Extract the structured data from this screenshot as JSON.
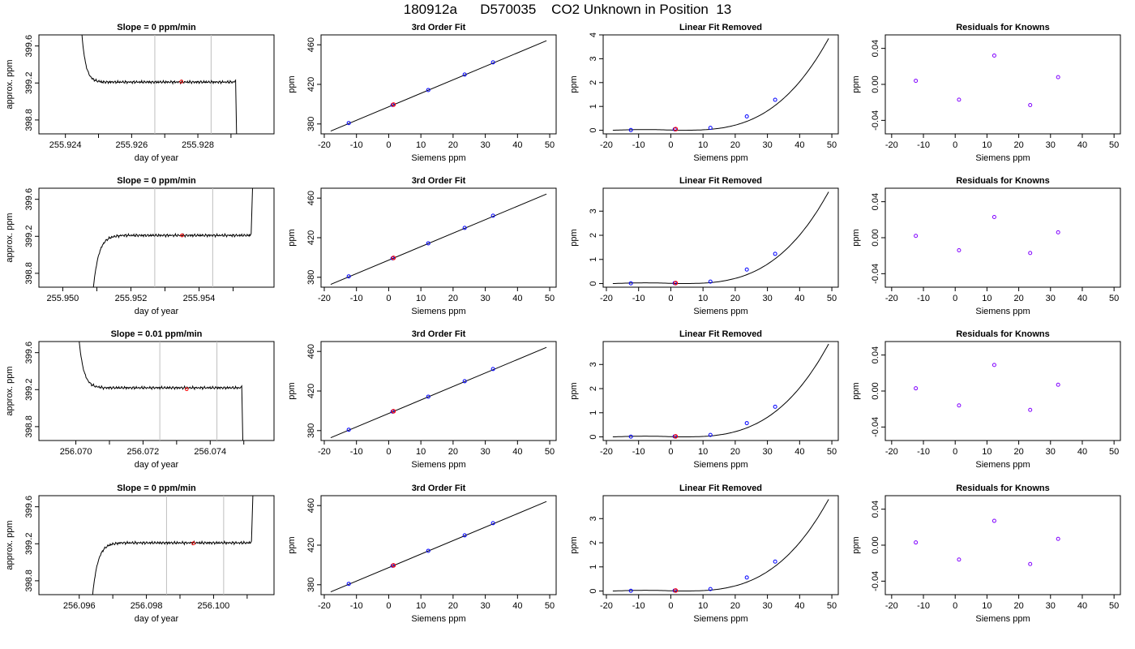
{
  "title": "180912a      D570035    CO2 Unknown in Position  13",
  "colors": {
    "curve": "#000000",
    "known_point": "#0000ff",
    "unknown_point": "#ff0000",
    "residual_point": "#8000ff",
    "window_marker": "#bfbfbf"
  },
  "chart_data": [
    {
      "type": "line",
      "panel": "time-series",
      "row": 1,
      "title": "Slope =  0  ppm/min",
      "xlabel": "day of year",
      "ylabel": "approx. ppm",
      "xlim": [
        255.9232,
        255.9303
      ],
      "ylim": [
        398.65,
        399.72
      ],
      "xticks": [
        255.924,
        255.926,
        255.928
      ],
      "xticklabels": [
        "255.924",
        "255.926",
        "255.928"
      ],
      "xminorticks": [
        255.925,
        255.927,
        255.929
      ],
      "yticks": [
        398.8,
        399.2,
        399.6
      ],
      "yticklabels": [
        "398.8",
        "399.2",
        "399.6"
      ],
      "trace": {
        "start": 255.9245,
        "rise_end": 255.9251,
        "end": 255.9291,
        "level": 399.21,
        "entry": 399.72,
        "exit": 398.65,
        "direction": "down-up-down"
      },
      "window": [
        255.9267,
        255.9284
      ],
      "marker": {
        "x": 255.9275,
        "y": 399.215
      }
    },
    {
      "type": "line",
      "panel": "fit",
      "row": 1,
      "title": "3rd Order Fit",
      "xlabel": "Siemens ppm",
      "ylabel": "ppm",
      "xlim": [
        -21,
        52
      ],
      "ylim": [
        370,
        470
      ],
      "xticks": [
        -20,
        -10,
        0,
        10,
        20,
        30,
        40,
        50
      ],
      "yticks": [
        380,
        420,
        460
      ],
      "line": {
        "x": [
          -18,
          49
        ],
        "y": [
          372.8,
          464.1
        ]
      },
      "knowns": {
        "x": [
          -12.4,
          1.2,
          12.3,
          23.6,
          32.4
        ],
        "y": [
          380.9,
          399.2,
          414.3,
          429.9,
          442.2
        ]
      },
      "unknown": {
        "x": 1.5,
        "y": 399.6
      }
    },
    {
      "type": "line",
      "panel": "linear-removed",
      "row": 1,
      "title": "Linear Fit Removed",
      "xlabel": "Siemens ppm",
      "ylabel": "ppm",
      "xlim": [
        -21,
        52
      ],
      "ylim": [
        -0.15,
        4.0
      ],
      "xticks": [
        -20,
        -10,
        0,
        10,
        20,
        30,
        40,
        50
      ],
      "yticks": [
        0,
        1,
        2,
        3,
        4
      ],
      "curve": {
        "x0": -18,
        "x1": 49,
        "amax": 3.85
      },
      "knowns": {
        "x": [
          -12.4,
          1.2,
          12.3,
          23.6,
          32.4
        ],
        "y": [
          0.01,
          0.04,
          0.1,
          0.58,
          1.28
        ]
      },
      "unknown": {
        "x": 1.5,
        "y": 0.05
      }
    },
    {
      "type": "scatter",
      "panel": "residuals",
      "row": 1,
      "title": "Residuals for Knowns",
      "xlabel": "Siemens ppm",
      "ylabel": "ppm",
      "xlim": [
        -22,
        52
      ],
      "ylim": [
        -0.055,
        0.055
      ],
      "xticks": [
        -20,
        -10,
        0,
        10,
        20,
        30,
        40,
        50
      ],
      "yticks": [
        -0.04,
        0.0,
        0.04
      ],
      "yticklabels": [
        "-0.04",
        "0.00",
        "0.04"
      ],
      "points": {
        "x": [
          -12.4,
          1.2,
          12.3,
          23.6,
          32.4
        ],
        "y": [
          0.004,
          -0.017,
          0.032,
          -0.023,
          0.008
        ]
      }
    },
    {
      "type": "line",
      "panel": "time-series",
      "row": 2,
      "title": "Slope =  0  ppm/min",
      "xlabel": "day of year",
      "ylabel": "approx. ppm",
      "xlim": [
        255.9493,
        255.9562
      ],
      "ylim": [
        398.65,
        399.72
      ],
      "xticks": [
        255.95,
        255.952,
        255.954
      ],
      "xticklabels": [
        "255.950",
        "255.952",
        "255.954"
      ],
      "xminorticks": [
        255.951,
        255.953,
        255.955
      ],
      "yticks": [
        398.8,
        399.2,
        399.6
      ],
      "yticklabels": [
        "398.8",
        "399.2",
        "399.6"
      ],
      "trace": {
        "start": 255.9509,
        "rise_end": 255.9517,
        "end": 255.9555,
        "level": 399.21,
        "entry": 398.65,
        "exit": 399.72,
        "direction": "up-up"
      },
      "window": [
        255.9527,
        255.9544
      ],
      "marker": {
        "x": 255.9535,
        "y": 399.21
      }
    },
    {
      "type": "line",
      "panel": "fit",
      "row": 2,
      "title": "3rd Order Fit",
      "xlabel": "Siemens ppm",
      "ylabel": "ppm",
      "xlim": [
        -21,
        52
      ],
      "ylim": [
        370,
        470
      ],
      "xticks": [
        -20,
        -10,
        0,
        10,
        20,
        30,
        40,
        50
      ],
      "yticks": [
        380,
        420,
        460
      ],
      "line": {
        "x": [
          -18,
          49
        ],
        "y": [
          372.8,
          464.1
        ]
      },
      "knowns": {
        "x": [
          -12.4,
          1.2,
          12.3,
          23.6,
          32.4
        ],
        "y": [
          380.9,
          399.2,
          414.3,
          429.9,
          442.2
        ]
      },
      "unknown": {
        "x": 1.5,
        "y": 399.6
      }
    },
    {
      "type": "line",
      "panel": "linear-removed",
      "row": 2,
      "title": "Linear Fit Removed",
      "xlabel": "Siemens ppm",
      "ylabel": "ppm",
      "xlim": [
        -21,
        52
      ],
      "ylim": [
        -0.15,
        3.95
      ],
      "xticks": [
        -20,
        -10,
        0,
        10,
        20,
        30,
        40,
        50
      ],
      "yticks": [
        0,
        1,
        2,
        3
      ],
      "curve": {
        "x0": -18,
        "x1": 49,
        "amax": 3.8
      },
      "knowns": {
        "x": [
          -12.4,
          1.2,
          12.3,
          23.6,
          32.4
        ],
        "y": [
          0.01,
          0.02,
          0.08,
          0.58,
          1.23
        ]
      },
      "unknown": {
        "x": 1.5,
        "y": 0.02
      }
    },
    {
      "type": "scatter",
      "panel": "residuals",
      "row": 2,
      "title": "Residuals for Knowns",
      "xlabel": "Siemens ppm",
      "ylabel": "ppm",
      "xlim": [
        -22,
        52
      ],
      "ylim": [
        -0.055,
        0.055
      ],
      "xticks": [
        -20,
        -10,
        0,
        10,
        20,
        30,
        40,
        50
      ],
      "yticks": [
        -0.04,
        0.0,
        0.04
      ],
      "yticklabels": [
        "-0.04",
        "0.00",
        "0.04"
      ],
      "points": {
        "x": [
          -12.4,
          1.2,
          12.3,
          23.6,
          32.4
        ],
        "y": [
          0.002,
          -0.014,
          0.023,
          -0.017,
          0.006
        ]
      }
    },
    {
      "type": "line",
      "panel": "time-series",
      "row": 3,
      "title": "Slope =  0.01  ppm/min",
      "xlabel": "day of year",
      "ylabel": "approx. ppm",
      "xlim": [
        256.0689,
        256.0759
      ],
      "ylim": [
        398.65,
        399.72
      ],
      "xticks": [
        256.07,
        256.072,
        256.074
      ],
      "xticklabels": [
        "256.070",
        "256.072",
        "256.074"
      ],
      "xminorticks": [
        256.071,
        256.073,
        256.075
      ],
      "yticks": [
        398.8,
        399.2,
        399.6
      ],
      "yticklabels": [
        "398.8",
        "399.2",
        "399.6"
      ],
      "trace": {
        "start": 256.0701,
        "rise_end": 256.0708,
        "end": 256.0749,
        "level": 399.22,
        "entry": 399.72,
        "exit": 398.65,
        "direction": "down-up-down"
      },
      "window": [
        256.0725,
        256.0742
      ],
      "marker": {
        "x": 256.0733,
        "y": 399.205
      }
    },
    {
      "type": "line",
      "panel": "fit",
      "row": 3,
      "title": "3rd Order Fit",
      "xlabel": "Siemens ppm",
      "ylabel": "ppm",
      "xlim": [
        -21,
        52
      ],
      "ylim": [
        370,
        470
      ],
      "xticks": [
        -20,
        -10,
        0,
        10,
        20,
        30,
        40,
        50
      ],
      "yticks": [
        380,
        420,
        460
      ],
      "line": {
        "x": [
          -18,
          49
        ],
        "y": [
          372.8,
          464.1
        ]
      },
      "knowns": {
        "x": [
          -12.4,
          1.2,
          12.3,
          23.6,
          32.4
        ],
        "y": [
          380.9,
          399.2,
          414.3,
          429.9,
          442.2
        ]
      },
      "unknown": {
        "x": 1.5,
        "y": 399.6
      }
    },
    {
      "type": "line",
      "panel": "linear-removed",
      "row": 3,
      "title": "Linear Fit Removed",
      "xlabel": "Siemens ppm",
      "ylabel": "ppm",
      "xlim": [
        -21,
        52
      ],
      "ylim": [
        -0.15,
        3.95
      ],
      "xticks": [
        -20,
        -10,
        0,
        10,
        20,
        30,
        40,
        50
      ],
      "yticks": [
        0,
        1,
        2,
        3
      ],
      "curve": {
        "x0": -18,
        "x1": 49,
        "amax": 3.85
      },
      "knowns": {
        "x": [
          -12.4,
          1.2,
          12.3,
          23.6,
          32.4
        ],
        "y": [
          0.01,
          0.02,
          0.08,
          0.57,
          1.25
        ]
      },
      "unknown": {
        "x": 1.5,
        "y": 0.02
      }
    },
    {
      "type": "scatter",
      "panel": "residuals",
      "row": 3,
      "title": "Residuals for Knowns",
      "xlabel": "Siemens ppm",
      "ylabel": "ppm",
      "xlim": [
        -22,
        52
      ],
      "ylim": [
        -0.055,
        0.055
      ],
      "xticks": [
        -20,
        -10,
        0,
        10,
        20,
        30,
        40,
        50
      ],
      "yticks": [
        -0.04,
        0.0,
        0.04
      ],
      "yticklabels": [
        "-0.04",
        "0.00",
        "0.04"
      ],
      "points": {
        "x": [
          -12.4,
          1.2,
          12.3,
          23.6,
          32.4
        ],
        "y": [
          0.003,
          -0.016,
          0.029,
          -0.021,
          0.007
        ]
      }
    },
    {
      "type": "line",
      "panel": "time-series",
      "row": 4,
      "title": "Slope =  0  ppm/min",
      "xlabel": "day of year",
      "ylabel": "approx. ppm",
      "xlim": [
        256.0948,
        256.1018
      ],
      "ylim": [
        398.65,
        399.72
      ],
      "xticks": [
        256.096,
        256.098,
        256.1
      ],
      "xticklabels": [
        "256.096",
        "256.098",
        "256.100"
      ],
      "xminorticks": [
        256.097,
        256.099,
        256.101
      ],
      "yticks": [
        398.8,
        399.2,
        399.6
      ],
      "yticklabels": [
        "398.8",
        "399.2",
        "399.6"
      ],
      "trace": {
        "start": 256.0964,
        "rise_end": 256.0972,
        "end": 256.1011,
        "level": 399.21,
        "entry": 398.65,
        "exit": 399.72,
        "direction": "up-up"
      },
      "window": [
        256.0986,
        256.1003
      ],
      "marker": {
        "x": 256.0994,
        "y": 399.205
      }
    },
    {
      "type": "line",
      "panel": "fit",
      "row": 4,
      "title": "3rd Order Fit",
      "xlabel": "Siemens ppm",
      "ylabel": "ppm",
      "xlim": [
        -21,
        52
      ],
      "ylim": [
        370,
        470
      ],
      "xticks": [
        -20,
        -10,
        0,
        10,
        20,
        30,
        40,
        50
      ],
      "yticks": [
        380,
        420,
        460
      ],
      "line": {
        "x": [
          -18,
          49
        ],
        "y": [
          372.8,
          464.1
        ]
      },
      "knowns": {
        "x": [
          -12.4,
          1.2,
          12.3,
          23.6,
          32.4
        ],
        "y": [
          380.9,
          399.2,
          414.3,
          429.9,
          442.2
        ]
      },
      "unknown": {
        "x": 1.5,
        "y": 399.6
      }
    },
    {
      "type": "line",
      "panel": "linear-removed",
      "row": 4,
      "title": "Linear Fit Removed",
      "xlabel": "Siemens ppm",
      "ylabel": "ppm",
      "xlim": [
        -21,
        52
      ],
      "ylim": [
        -0.15,
        3.95
      ],
      "xticks": [
        -20,
        -10,
        0,
        10,
        20,
        30,
        40,
        50
      ],
      "yticks": [
        0,
        1,
        2,
        3
      ],
      "curve": {
        "x0": -18,
        "x1": 49,
        "amax": 3.8
      },
      "knowns": {
        "x": [
          -12.4,
          1.2,
          12.3,
          23.6,
          32.4
        ],
        "y": [
          0.01,
          0.02,
          0.08,
          0.56,
          1.22
        ]
      },
      "unknown": {
        "x": 1.5,
        "y": 0.02
      }
    },
    {
      "type": "scatter",
      "panel": "residuals",
      "row": 4,
      "title": "Residuals for Knowns",
      "xlabel": "Siemens ppm",
      "ylabel": "ppm",
      "xlim": [
        -22,
        52
      ],
      "ylim": [
        -0.055,
        0.055
      ],
      "xticks": [
        -20,
        -10,
        0,
        10,
        20,
        30,
        40,
        50
      ],
      "yticks": [
        -0.04,
        0.0,
        0.04
      ],
      "yticklabels": [
        "-0.04",
        "0.00",
        "0.04"
      ],
      "points": {
        "x": [
          -12.4,
          1.2,
          12.3,
          23.6,
          32.4
        ],
        "y": [
          0.003,
          -0.016,
          0.027,
          -0.021,
          0.007
        ]
      }
    }
  ]
}
